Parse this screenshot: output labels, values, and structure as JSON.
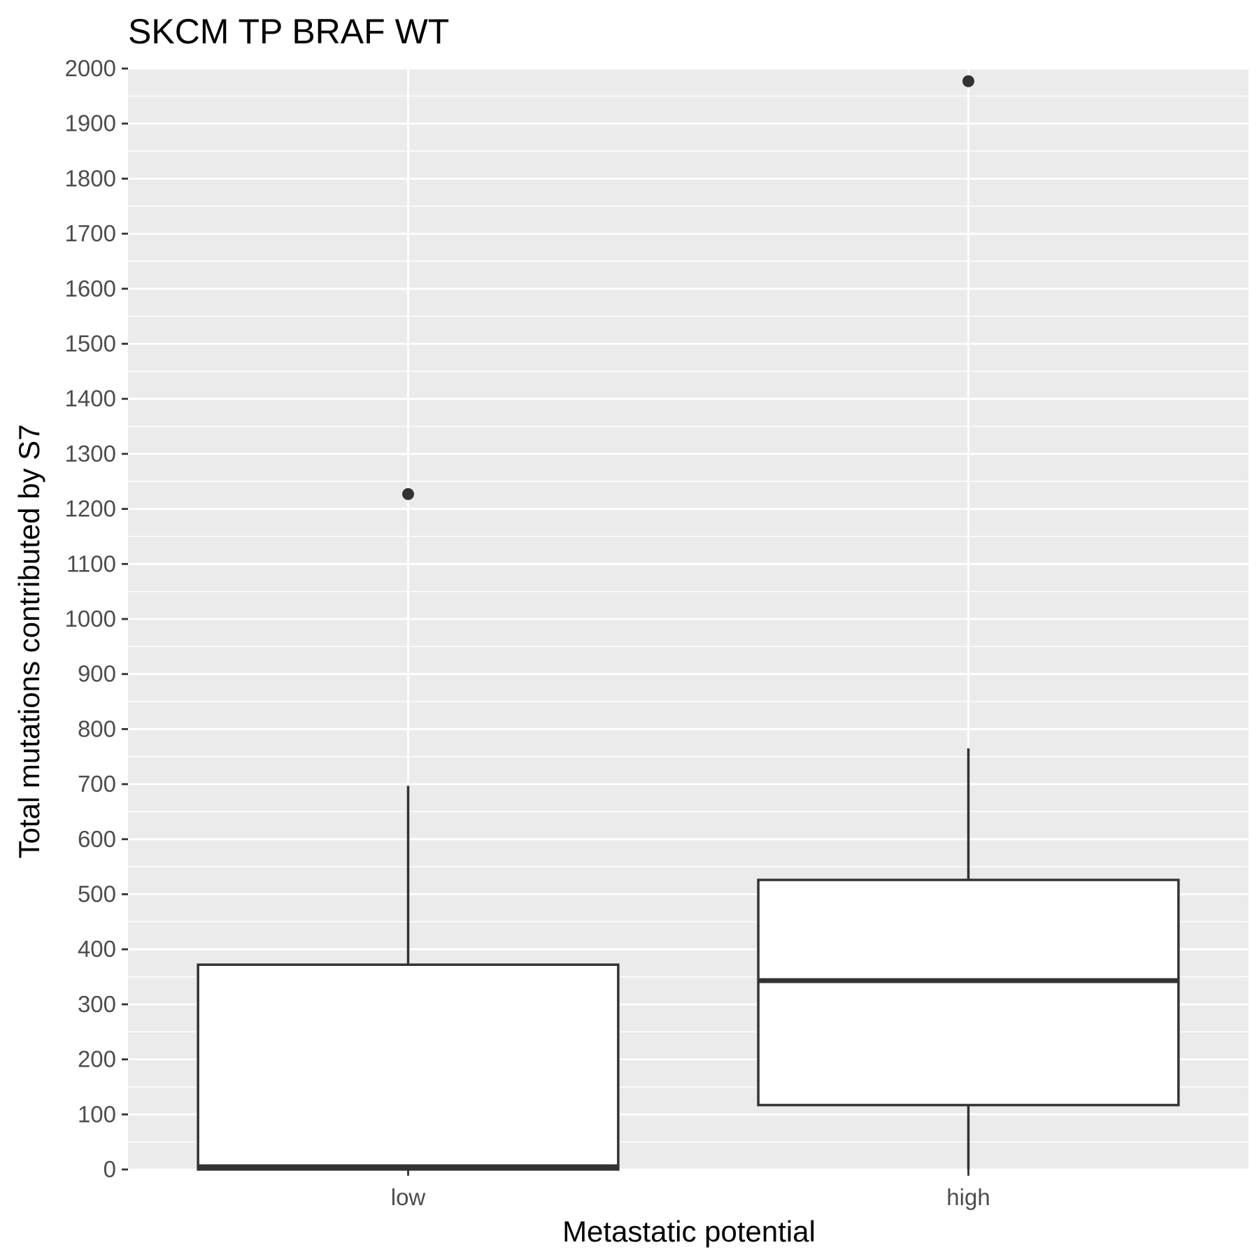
{
  "chart_data": {
    "type": "boxplot",
    "title": "SKCM TP BRAF WT",
    "xlabel": "Metastatic potential",
    "ylabel": "Total mutations contributed by S7",
    "categories": [
      "low",
      "high"
    ],
    "ylim": [
      0,
      2000
    ],
    "yticks": [
      0,
      100,
      200,
      300,
      400,
      500,
      600,
      700,
      800,
      900,
      1000,
      1100,
      1200,
      1300,
      1400,
      1500,
      1600,
      1700,
      1800,
      1900,
      2000
    ],
    "boxes": [
      {
        "category": "low",
        "whisker_low": 0,
        "q1": 0,
        "median": 5,
        "q3": 372,
        "whisker_high": 697,
        "outliers": [
          1227
        ]
      },
      {
        "category": "high",
        "whisker_low": 0,
        "q1": 117,
        "median": 343,
        "q3": 526,
        "whisker_high": 765,
        "outliers": [
          1977
        ]
      }
    ],
    "grid": true,
    "legend": "none",
    "colors": {
      "panel_background": "#ebebeb",
      "grid_line": "#ffffff",
      "box_fill": "#ffffff",
      "box_line": "#333333",
      "outlier": "#333333",
      "tick_label": "#4d4d4d",
      "text": "#000000"
    }
  }
}
